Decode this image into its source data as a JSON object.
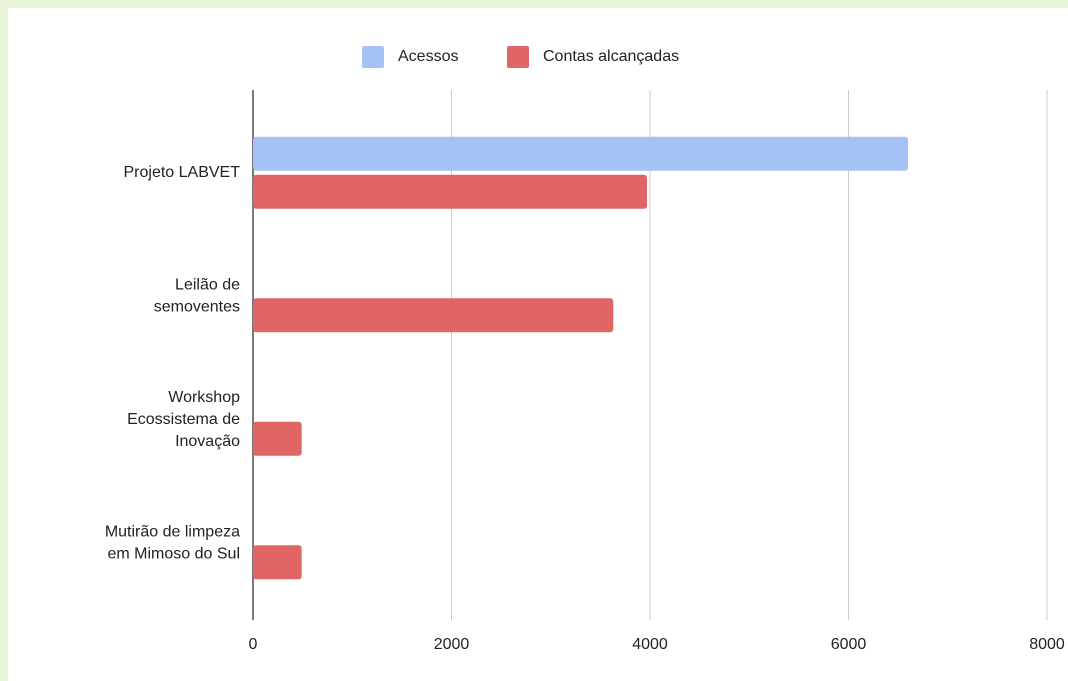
{
  "chart_data": {
    "type": "hbar",
    "categories": [
      "Projeto LABVET",
      "Leilão de\nsemoventes",
      "Workshop\nEcossistema de\nInovação",
      "Mutirão de limpeza\nem Mimoso do Sul"
    ],
    "series": [
      {
        "name": "Acessos",
        "color": "#a4c2f4",
        "values": [
          6600,
          0,
          0,
          0
        ]
      },
      {
        "name": "Contas alcançadas",
        "color": "#e06666",
        "values": [
          3970,
          3630,
          490,
          490
        ]
      }
    ],
    "xlim": [
      0,
      8000
    ],
    "xticks": [
      0,
      2000,
      4000,
      6000,
      8000
    ],
    "grid": true,
    "legend": "top"
  }
}
